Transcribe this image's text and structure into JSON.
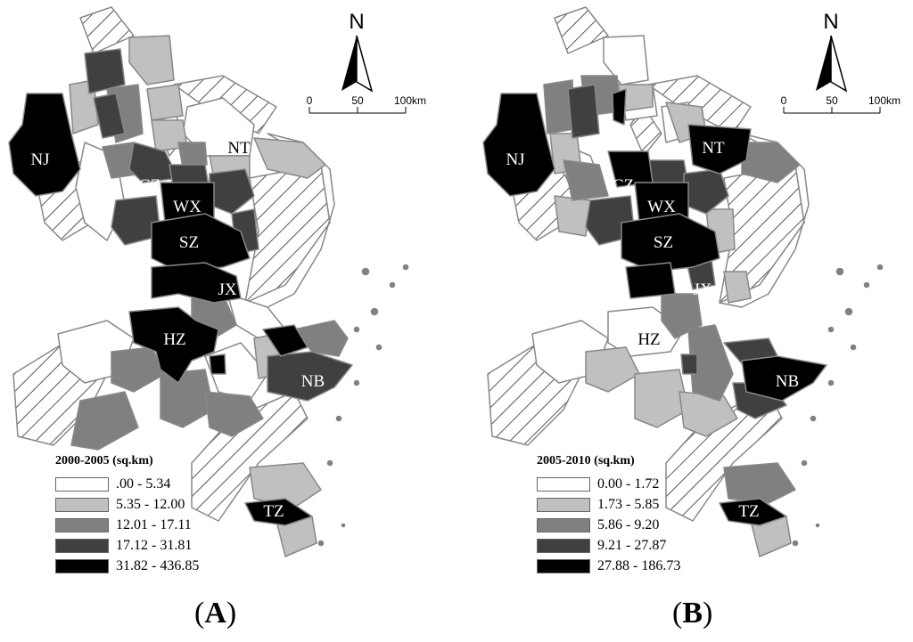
{
  "panels": [
    {
      "id": "A",
      "label": "A",
      "legend": {
        "title": "2000-2005 (sq.km)",
        "classes": [
          {
            "range": ".00 - 5.34",
            "color": "#ffffff"
          },
          {
            "range": "5.35 - 12.00",
            "color": "#c0c0c0"
          },
          {
            "range": "12.01 - 17.11",
            "color": "#808080"
          },
          {
            "range": "17.12 - 31.81",
            "color": "#404040"
          },
          {
            "range": "31.82 - 436.85",
            "color": "#000000"
          }
        ]
      },
      "cities": {
        "NJ": "NJ",
        "NT": "NT",
        "CZ": "CZ",
        "WX": "WX",
        "SZ": "SZ",
        "JX": "JX",
        "HZ": "HZ",
        "NB": "NB",
        "TZ": "TZ"
      },
      "north": "N",
      "scale": {
        "zero": "0",
        "mid": "50",
        "end": "100km"
      }
    },
    {
      "id": "B",
      "label": "B",
      "legend": {
        "title": "2005-2010 (sq.km)",
        "classes": [
          {
            "range": "0.00 - 1.72",
            "color": "#ffffff"
          },
          {
            "range": "1.73 - 5.85",
            "color": "#c0c0c0"
          },
          {
            "range": "5.86 - 9.20",
            "color": "#808080"
          },
          {
            "range": "9.21 - 27.87",
            "color": "#404040"
          },
          {
            "range": "27.88 - 186.73",
            "color": "#000000"
          }
        ]
      },
      "cities": {
        "NJ": "NJ",
        "NT": "NT",
        "CZ": "CZ",
        "WX": "WX",
        "SZ": "SZ",
        "JX": "JX",
        "HZ": "HZ",
        "NB": "NB",
        "TZ": "TZ"
      },
      "north": "N",
      "scale": {
        "zero": "0",
        "mid": "50",
        "end": "100km"
      }
    }
  ]
}
